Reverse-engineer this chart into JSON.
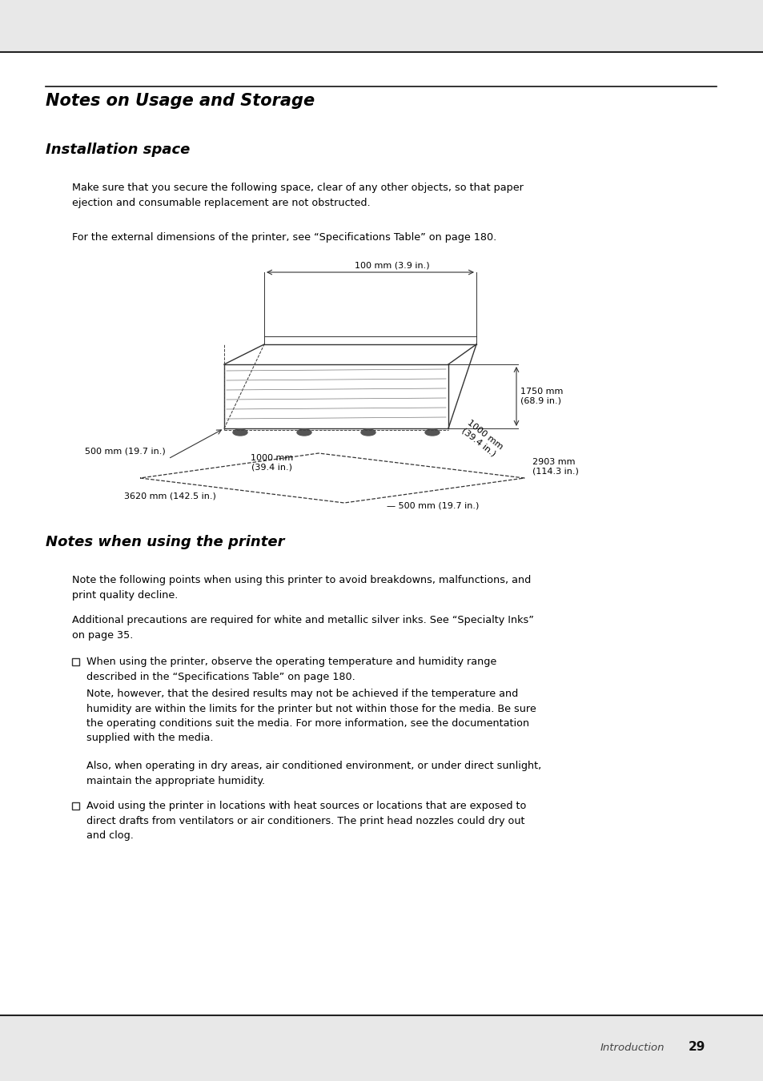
{
  "page_bg": "#e8e8e8",
  "content_bg": "#ffffff",
  "title1": "Notes on Usage and Storage",
  "title2": "Installation space",
  "title3": "Notes when using the printer",
  "para1": "Make sure that you secure the following space, clear of any other objects, so that paper\nejection and consumable replacement are not obstructed.",
  "para2": "For the external dimensions of the printer, see “Specifications Table” on page 180.",
  "para3": "Note the following points when using this printer to avoid breakdowns, malfunctions, and\nprint quality decline.",
  "para4": "Additional precautions are required for white and metallic silver inks. See “Specialty Inks”\non page 35.",
  "bullet1": "When using the printer, observe the operating temperature and humidity range\ndescribed in the “Specifications Table” on page 180.",
  "bullet1_note": "Note, however, that the desired results may not be achieved if the temperature and\nhumidity are within the limits for the printer but not within those for the media. Be sure\nthe operating conditions suit the media. For more information, see the documentation\nsupplied with the media.",
  "bullet1_note2": "Also, when operating in dry areas, air conditioned environment, or under direct sunlight,\nmaintain the appropriate humidity.",
  "bullet2": "Avoid using the printer in locations with heat sources or locations that are exposed to\ndirect drafts from ventilators or air conditioners. The print head nozzles could dry out\nand clog.",
  "footer_text": "Introduction",
  "footer_page": "29",
  "dim_100mm": "100 mm (3.9 in.)",
  "dim_500mm_left": "500 mm (19.7 in.)",
  "dim_1750mm": "1750 mm\n(68.9 in.)",
  "dim_1000mm_diag": "1000 mm\n(39.4 in.)",
  "dim_1000mm_bottom": "1000 mm\n(39.4 in.)",
  "dim_2903mm": "2903 mm\n(114.3 in.)",
  "dim_3620mm": "3620 mm (142.5 in.)",
  "dim_500mm_right": "500 mm (19.7 in.)"
}
